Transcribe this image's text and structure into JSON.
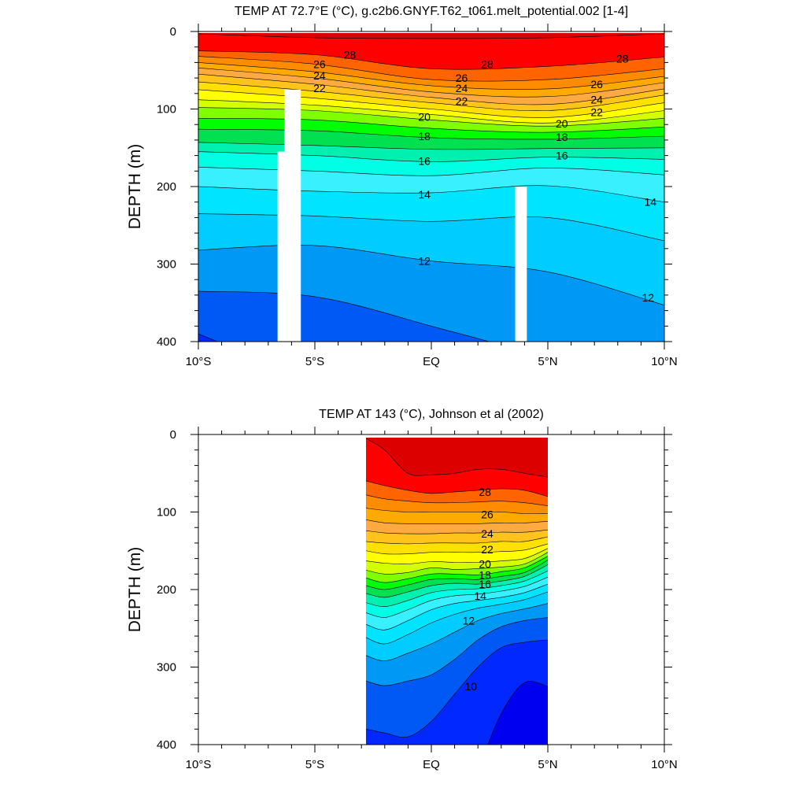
{
  "chart_data": [
    {
      "type": "heatmap",
      "title": "TEMP AT  72.7°E (°C), g.c2b6.GNYF.T62_t061.melt_potential.002 [1-4]",
      "ylabel": "DEPTH (m)",
      "xlabel": "",
      "xlim": [
        -10,
        10
      ],
      "ylim": [
        400,
        0
      ],
      "x_ticks": [
        {
          "v": -10,
          "label": "10°S"
        },
        {
          "v": -5,
          "label": "5°S"
        },
        {
          "v": 0,
          "label": "EQ"
        },
        {
          "v": 5,
          "label": "5°N"
        },
        {
          "v": 10,
          "label": "10°N"
        }
      ],
      "y_ticks": [
        {
          "v": 0,
          "label": "0"
        },
        {
          "v": 100,
          "label": "100"
        },
        {
          "v": 200,
          "label": "200"
        },
        {
          "v": 300,
          "label": "300"
        },
        {
          "v": 400,
          "label": "400"
        }
      ],
      "data_extent": [
        -10,
        10
      ],
      "contour_x": [
        -10,
        -5,
        0,
        5,
        10
      ],
      "contours": [
        {
          "level": 29,
          "depth": [
            3,
            8,
            9,
            8,
            3
          ]
        },
        {
          "level": 28,
          "depth": [
            25,
            30,
            48,
            45,
            33
          ]
        },
        {
          "level": 27,
          "depth": [
            32,
            42,
            62,
            62,
            48
          ]
        },
        {
          "level": 26,
          "depth": [
            40,
            52,
            70,
            74,
            58
          ]
        },
        {
          "level": 25,
          "depth": [
            47,
            60,
            78,
            84,
            66
          ]
        },
        {
          "level": 24,
          "depth": [
            55,
            68,
            85,
            94,
            74
          ]
        },
        {
          "level": 23,
          "depth": [
            65,
            77,
            92,
            102,
            82
          ]
        },
        {
          "level": 22,
          "depth": [
            75,
            86,
            100,
            111,
            92
          ]
        },
        {
          "level": 21,
          "depth": [
            88,
            95,
            107,
            118,
            102
          ]
        },
        {
          "level": 20,
          "depth": [
            98,
            102,
            114,
            122,
            112
          ]
        },
        {
          "level": 19,
          "depth": [
            112,
            114,
            125,
            130,
            123
          ]
        },
        {
          "level": 18,
          "depth": [
            126,
            128,
            137,
            139,
            135
          ]
        },
        {
          "level": 17,
          "depth": [
            143,
            147,
            152,
            151,
            150
          ]
        },
        {
          "level": 16,
          "depth": [
            155,
            160,
            168,
            162,
            165
          ]
        },
        {
          "level": 15,
          "depth": [
            175,
            180,
            186,
            176,
            185
          ]
        },
        {
          "level": 14,
          "depth": [
            200,
            206,
            208,
            199,
            220
          ]
        },
        {
          "level": 13,
          "depth": [
            235,
            238,
            245,
            240,
            270
          ]
        },
        {
          "level": 12,
          "depth": [
            282,
            276,
            296,
            310,
            353
          ]
        },
        {
          "level": 11,
          "depth": [
            335,
            342,
            380,
            425,
            500
          ]
        },
        {
          "level": 10,
          "depth": [
            390,
            450,
            500,
            500,
            500
          ]
        }
      ],
      "masks": [
        {
          "x0": -6.6,
          "x1": -5.9,
          "ytop": 155
        },
        {
          "x0": -6.3,
          "x1": -5.6,
          "ytop": 75
        },
        {
          "x0": 3.6,
          "x1": 4.1,
          "ytop": 200
        }
      ],
      "labels": [
        {
          "text": "28",
          "x": -3.5,
          "y": 30
        },
        {
          "text": "28",
          "x": 2.4,
          "y": 42
        },
        {
          "text": "28",
          "x": 8.2,
          "y": 35
        },
        {
          "text": "26",
          "x": -4.8,
          "y": 42
        },
        {
          "text": "24",
          "x": -4.8,
          "y": 57
        },
        {
          "text": "22",
          "x": -4.8,
          "y": 73
        },
        {
          "text": "26",
          "x": 1.3,
          "y": 60
        },
        {
          "text": "24",
          "x": 1.3,
          "y": 73
        },
        {
          "text": "22",
          "x": 1.3,
          "y": 90
        },
        {
          "text": "26",
          "x": 7.1,
          "y": 68
        },
        {
          "text": "24",
          "x": 7.1,
          "y": 88
        },
        {
          "text": "22",
          "x": 7.1,
          "y": 104
        },
        {
          "text": "20",
          "x": -0.3,
          "y": 110
        },
        {
          "text": "18",
          "x": -0.3,
          "y": 135
        },
        {
          "text": "16",
          "x": -0.3,
          "y": 167
        },
        {
          "text": "14",
          "x": -0.3,
          "y": 210
        },
        {
          "text": "12",
          "x": -0.3,
          "y": 296
        },
        {
          "text": "20",
          "x": 5.6,
          "y": 119
        },
        {
          "text": "18",
          "x": 5.6,
          "y": 136
        },
        {
          "text": "16",
          "x": 5.6,
          "y": 160
        },
        {
          "text": "14",
          "x": 9.4,
          "y": 220
        },
        {
          "text": "12",
          "x": 9.3,
          "y": 343
        }
      ]
    },
    {
      "type": "heatmap",
      "title": "TEMP AT 143 (°C), Johnson et al (2002)",
      "ylabel": "DEPTH (m)",
      "xlabel": "",
      "xlim": [
        -10,
        10
      ],
      "ylim": [
        400,
        0
      ],
      "x_ticks": [
        {
          "v": -10,
          "label": "10°S"
        },
        {
          "v": -5,
          "label": "5°S"
        },
        {
          "v": 0,
          "label": "EQ"
        },
        {
          "v": 5,
          "label": "5°N"
        },
        {
          "v": 10,
          "label": "10°N"
        }
      ],
      "y_ticks": [
        {
          "v": 0,
          "label": "0"
        },
        {
          "v": 100,
          "label": "100"
        },
        {
          "v": 200,
          "label": "200"
        },
        {
          "v": 300,
          "label": "300"
        },
        {
          "v": 400,
          "label": "400"
        }
      ],
      "data_extent": [
        -2.8,
        5
      ],
      "contour_x": [
        -2.8,
        -2,
        -1,
        0,
        1,
        2,
        3,
        4,
        5
      ],
      "contours": [
        {
          "level": 29,
          "depth": [
            5,
            20,
            50,
            52,
            50,
            45,
            45,
            50,
            55
          ]
        },
        {
          "level": 28,
          "depth": [
            60,
            66,
            72,
            76,
            74,
            72,
            70,
            72,
            80
          ]
        },
        {
          "level": 27,
          "depth": [
            78,
            83,
            86,
            88,
            88,
            87,
            86,
            88,
            92
          ]
        },
        {
          "level": 26,
          "depth": [
            95,
            98,
            100,
            100,
            100,
            100,
            100,
            102,
            102
          ]
        },
        {
          "level": 25,
          "depth": [
            110,
            114,
            115,
            115,
            115,
            115,
            114,
            114,
            112
          ]
        },
        {
          "level": 24,
          "depth": [
            124,
            127,
            128,
            128,
            127,
            127,
            126,
            126,
            123
          ]
        },
        {
          "level": 23,
          "depth": [
            138,
            140,
            141,
            140,
            140,
            140,
            138,
            138,
            132
          ]
        },
        {
          "level": 22,
          "depth": [
            150,
            154,
            154,
            152,
            152,
            152,
            151,
            149,
            141
          ]
        },
        {
          "level": 21,
          "depth": [
            163,
            166,
            167,
            164,
            165,
            165,
            163,
            160,
            147
          ]
        },
        {
          "level": 20,
          "depth": [
            175,
            180,
            178,
            172,
            174,
            173,
            171,
            167,
            152
          ]
        },
        {
          "level": 19,
          "depth": [
            185,
            191,
            186,
            180,
            180,
            181,
            177,
            172,
            157
          ]
        },
        {
          "level": 18,
          "depth": [
            195,
            200,
            194,
            187,
            186,
            187,
            183,
            178,
            162
          ]
        },
        {
          "level": 17,
          "depth": [
            205,
            210,
            203,
            195,
            192,
            193,
            189,
            183,
            168
          ]
        },
        {
          "level": 16,
          "depth": [
            217,
            222,
            214,
            204,
            200,
            199,
            195,
            189,
            176
          ]
        },
        {
          "level": 15,
          "depth": [
            230,
            236,
            226,
            214,
            208,
            206,
            202,
            196,
            184
          ]
        },
        {
          "level": 14,
          "depth": [
            245,
            252,
            240,
            226,
            218,
            214,
            210,
            204,
            193
          ]
        },
        {
          "level": 13,
          "depth": [
            262,
            270,
            258,
            243,
            232,
            224,
            219,
            213,
            203
          ]
        },
        {
          "level": 12,
          "depth": [
            285,
            292,
            282,
            270,
            255,
            240,
            231,
            225,
            218
          ]
        },
        {
          "level": 11,
          "depth": [
            318,
            324,
            318,
            310,
            290,
            265,
            248,
            240,
            236
          ]
        },
        {
          "level": 10,
          "depth": [
            380,
            385,
            390,
            370,
            335,
            300,
            275,
            268,
            265
          ]
        },
        {
          "level": 9,
          "depth": [
            500,
            500,
            500,
            500,
            480,
            430,
            360,
            320,
            325
          ]
        }
      ],
      "masks": [],
      "labels": [
        {
          "text": "28",
          "x": 2.3,
          "y": 74
        },
        {
          "text": "26",
          "x": 2.4,
          "y": 103
        },
        {
          "text": "24",
          "x": 2.4,
          "y": 128
        },
        {
          "text": "22",
          "x": 2.4,
          "y": 148
        },
        {
          "text": "20",
          "x": 2.3,
          "y": 167
        },
        {
          "text": "18",
          "x": 2.3,
          "y": 181
        },
        {
          "text": "16",
          "x": 2.3,
          "y": 193
        },
        {
          "text": "14",
          "x": 2.1,
          "y": 208
        },
        {
          "text": "12",
          "x": 1.6,
          "y": 240
        },
        {
          "text": "10",
          "x": 1.7,
          "y": 325
        }
      ]
    }
  ]
}
